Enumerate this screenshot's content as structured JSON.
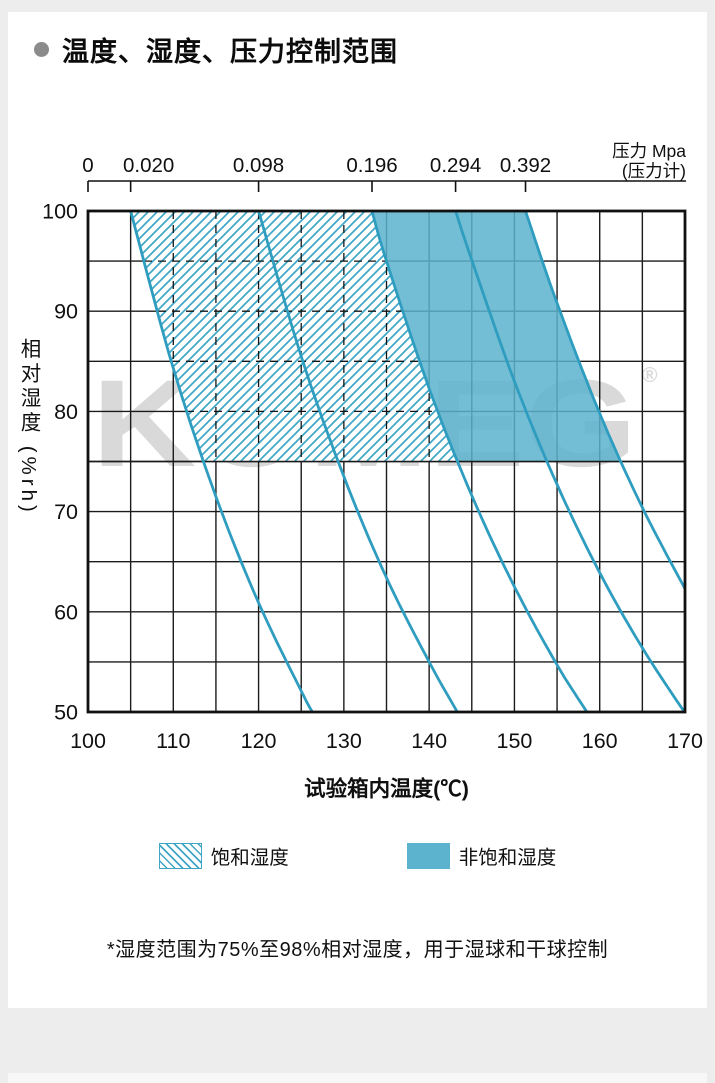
{
  "page": {
    "title": "温度、湿度、压力控制范围",
    "footnote": "*湿度范围为75%至98%相对湿度，用于湿球和干球控制",
    "watermark": "KOMEG",
    "watermark_mark": "®"
  },
  "legend": {
    "items": [
      {
        "label": "饱和湿度",
        "style": "hatched"
      },
      {
        "label": "非饱和湿度",
        "style": "solid"
      }
    ]
  },
  "colors": {
    "curve": "#2f9dbf",
    "region_fill": "#5cb3ce",
    "hatch_line": "#3fa6c5",
    "grid": "#1b1b1b",
    "text": "#101010",
    "watermark": "#d9d9d9",
    "bullet": "#8b8b8b",
    "page_bg": "#ededed"
  },
  "chart_data": {
    "type": "line",
    "title": "温度、湿度、压力控制范围",
    "xlabel": "试验箱内温度(℃)",
    "ylabel": "相对湿度 (%rh)",
    "xlim": [
      100,
      170
    ],
    "ylim": [
      50,
      100
    ],
    "x_ticks": [
      100,
      110,
      120,
      130,
      140,
      150,
      160,
      170
    ],
    "y_ticks": [
      100,
      90,
      80,
      70,
      60,
      50
    ],
    "grid_step": 5,
    "grid": true,
    "top_axis": {
      "title": "压力 Mpa",
      "subtitle": "(压力计)",
      "ticks": [
        {
          "label": "0",
          "temp": 100,
          "dx": 0
        },
        {
          "label": "0.020",
          "temp": 105,
          "dx": 18
        },
        {
          "label": "0.098",
          "temp": 120,
          "dx": 0
        },
        {
          "label": "0.196",
          "temp": 133.3,
          "dx": 0
        },
        {
          "label": "0.294",
          "temp": 143.1,
          "dx": 0
        },
        {
          "label": "0.392",
          "temp": 151.3,
          "dx": 0
        }
      ]
    },
    "series": [
      {
        "name": "0.020",
        "points": [
          [
            105,
            100
          ],
          [
            110,
            84.3
          ],
          [
            115,
            71.5
          ],
          [
            120,
            60.9
          ],
          [
            125,
            52.1
          ],
          [
            126.3,
            50
          ]
        ]
      },
      {
        "name": "0.098",
        "points": [
          [
            120,
            100
          ],
          [
            125,
            85.5
          ],
          [
            130,
            73.5
          ],
          [
            135,
            63.4
          ],
          [
            140,
            55.0
          ],
          [
            143.3,
            50
          ]
        ]
      },
      {
        "name": "0.196",
        "points": [
          [
            133.3,
            100
          ],
          [
            135,
            95.0
          ],
          [
            140,
            82.3
          ],
          [
            145,
            71.6
          ],
          [
            150,
            62.5
          ],
          [
            155,
            54.7
          ],
          [
            158.5,
            50
          ]
        ]
      },
      {
        "name": "0.294",
        "points": [
          [
            143.1,
            100
          ],
          [
            145,
            95.1
          ],
          [
            150,
            83.0
          ],
          [
            155,
            72.7
          ],
          [
            160,
            63.9
          ],
          [
            165,
            56.4
          ],
          [
            170,
            49.9
          ]
        ]
      },
      {
        "name": "0.392",
        "points": [
          [
            151.3,
            100
          ],
          [
            155,
            90.8
          ],
          [
            160,
            79.8
          ],
          [
            165,
            70.4
          ],
          [
            170,
            62.3
          ]
        ]
      }
    ],
    "regions": [
      {
        "name": "饱和湿度",
        "style": "hatched",
        "rh_min": 75,
        "left_curve": 0,
        "right_curve": 2
      },
      {
        "name": "非饱和湿度",
        "style": "solid",
        "rh_min": 75,
        "left_curve": 2,
        "right_curve": 4
      }
    ],
    "dashed_grid": {
      "x": [
        105,
        110,
        115,
        120,
        125,
        130,
        135,
        140
      ],
      "y": [
        80,
        85,
        90,
        95
      ]
    }
  }
}
